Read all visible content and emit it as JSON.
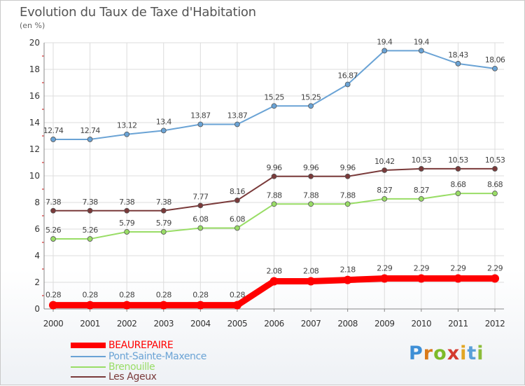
{
  "title": "Evolution du Taux de Taxe d'Habitation",
  "unit_label": "(en %)",
  "logo": {
    "letters": [
      "P",
      "r",
      "o",
      "x",
      "i",
      "t",
      "i"
    ],
    "colors": [
      "#3e8fd6",
      "#d97a1b",
      "#7dbb2a",
      "#d43b2f",
      "#e2a623",
      "#5aa0d8",
      "#8cbc3a"
    ]
  },
  "chart_data": {
    "type": "line",
    "x": [
      "2000",
      "2001",
      "2002",
      "2003",
      "2004",
      "2005",
      "2006",
      "2007",
      "2008",
      "2009",
      "2010",
      "2011",
      "2012"
    ],
    "ylim": [
      0,
      20
    ],
    "yticks": [
      "0",
      "2",
      "4",
      "6",
      "8",
      "10",
      "12",
      "14",
      "16",
      "18",
      "20"
    ],
    "grid": true,
    "legend_position": "bottom-left",
    "series": [
      {
        "name": "BEAUREPAIRE",
        "color": "#ff0000",
        "values": [
          0.28,
          0.28,
          0.28,
          0.28,
          0.28,
          0.28,
          2.08,
          2.08,
          2.18,
          2.29,
          2.29,
          2.29,
          2.29
        ],
        "labels": [
          "0.28",
          "0.28",
          "0.28",
          "0.28",
          "0.28",
          "0.28",
          "2.08",
          "2.08",
          "2.18",
          "2.29",
          "2.29",
          "2.29",
          "2.29"
        ]
      },
      {
        "name": "Pont-Sainte-Maxence",
        "color": "#6aa3d5",
        "values": [
          12.74,
          12.74,
          13.12,
          13.4,
          13.87,
          13.87,
          15.25,
          15.25,
          16.87,
          19.4,
          19.4,
          18.43,
          18.06
        ],
        "labels": [
          "12.74",
          "12.74",
          "13.12",
          "13.4",
          "13.87",
          "13.87",
          "15.25",
          "15.25",
          "16.87",
          "19.4",
          "19.4",
          "18.43",
          "18.06"
        ]
      },
      {
        "name": "Brenouille",
        "color": "#99dd66",
        "values": [
          5.26,
          5.26,
          5.79,
          5.79,
          6.08,
          6.08,
          7.88,
          7.88,
          7.88,
          8.27,
          8.27,
          8.68,
          8.68
        ],
        "labels": [
          "5.26",
          "5.26",
          "5.79",
          "5.79",
          "6.08",
          "6.08",
          "7.88",
          "7.88",
          "7.88",
          "8.27",
          "8.27",
          "8.68",
          "8.68"
        ]
      },
      {
        "name": "Les Ageux",
        "color": "#7a3a3a",
        "values": [
          7.38,
          7.38,
          7.38,
          7.38,
          7.77,
          8.16,
          9.96,
          9.96,
          9.96,
          10.42,
          10.53,
          10.53,
          10.53
        ],
        "labels": [
          "7.38",
          "7.38",
          "7.38",
          "7.38",
          "7.77",
          "8.16",
          "9.96",
          "9.96",
          "9.96",
          "10.42",
          "10.53",
          "10.53",
          "10.53"
        ]
      }
    ]
  }
}
